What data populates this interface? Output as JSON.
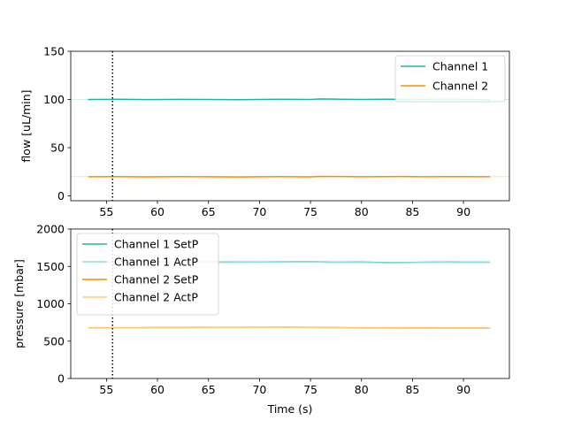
{
  "chart_data": [
    {
      "type": "line",
      "title": "",
      "xlabel": "",
      "ylabel": "flow [uL/min]",
      "xlim": [
        51.5,
        94.5
      ],
      "ylim": [
        -5,
        150
      ],
      "xticks": [
        55,
        60,
        65,
        70,
        75,
        80,
        85,
        90
      ],
      "yticks": [
        0,
        50,
        100,
        150
      ],
      "vline_x": 55.6,
      "grid": false,
      "legend_position": "top-right",
      "reference_lines": [
        {
          "y": 100,
          "color": "#cfeff0"
        },
        {
          "y": 20,
          "color": "#ffe2b0"
        }
      ],
      "series": [
        {
          "name": "Channel 1",
          "color": "#20b2aa",
          "x": [
            53.2,
            56,
            59,
            62,
            65,
            68,
            70,
            72,
            75,
            76,
            78,
            80,
            82,
            84,
            86,
            88,
            90,
            92.6
          ],
          "y": [
            100,
            100.2,
            99.9,
            100.1,
            100,
            99.8,
            100,
            100.2,
            100,
            100.6,
            100.3,
            100,
            100.2,
            100.3,
            100,
            100.1,
            100,
            99.9
          ]
        },
        {
          "name": "Channel 2",
          "color": "#ff8c00",
          "x": [
            53.2,
            56,
            59,
            62,
            65,
            68,
            70,
            72,
            75,
            76,
            78,
            80,
            82,
            84,
            86,
            88,
            90,
            92.6
          ],
          "y": [
            19.9,
            20,
            19.8,
            20,
            19.9,
            19.7,
            19.9,
            20,
            19.8,
            20.2,
            20.1,
            19.9,
            20,
            20.1,
            19.9,
            20,
            20,
            19.9
          ]
        }
      ]
    },
    {
      "type": "line",
      "title": "",
      "xlabel": "Time (s)",
      "ylabel": "pressure [mbar]",
      "xlim": [
        51.5,
        94.5
      ],
      "ylim": [
        0,
        2000
      ],
      "xticks": [
        55,
        60,
        65,
        70,
        75,
        80,
        85,
        90
      ],
      "yticks": [
        0,
        500,
        1000,
        1500,
        2000
      ],
      "vline_x": 55.6,
      "grid": false,
      "legend_position": "top-left",
      "series": [
        {
          "name": "Channel 1 SetP",
          "color": "#20b2aa",
          "x": [
            53.2,
            56,
            60,
            65,
            70,
            75,
            77,
            80,
            83,
            85,
            88,
            90,
            92.6
          ],
          "y": [
            1555,
            1556,
            1558,
            1557,
            1560,
            1566,
            1556,
            1557,
            1550,
            1554,
            1560,
            1556,
            1556
          ]
        },
        {
          "name": "Channel 1 ActP",
          "color": "#8fe0d8",
          "x": [
            53.2,
            56,
            60,
            65,
            70,
            75,
            77,
            80,
            83,
            85,
            88,
            90,
            92.6
          ],
          "y": [
            1552,
            1553,
            1555,
            1554,
            1557,
            1563,
            1553,
            1554,
            1547,
            1551,
            1557,
            1553,
            1553
          ]
        },
        {
          "name": "Channel 2 SetP",
          "color": "#ff8c00",
          "x": [
            53.2,
            56,
            60,
            65,
            70,
            73,
            75,
            78,
            80,
            85,
            90,
            92.6
          ],
          "y": [
            678,
            679,
            681,
            683,
            685,
            686,
            684,
            680,
            678,
            677,
            675,
            675
          ]
        },
        {
          "name": "Channel 2 ActP",
          "color": "#ffc87a",
          "x": [
            53.2,
            56,
            60,
            65,
            70,
            73,
            75,
            78,
            80,
            85,
            90,
            92.6
          ],
          "y": [
            676,
            677,
            679,
            681,
            683,
            684,
            682,
            678,
            676,
            675,
            673,
            673
          ]
        }
      ]
    }
  ]
}
